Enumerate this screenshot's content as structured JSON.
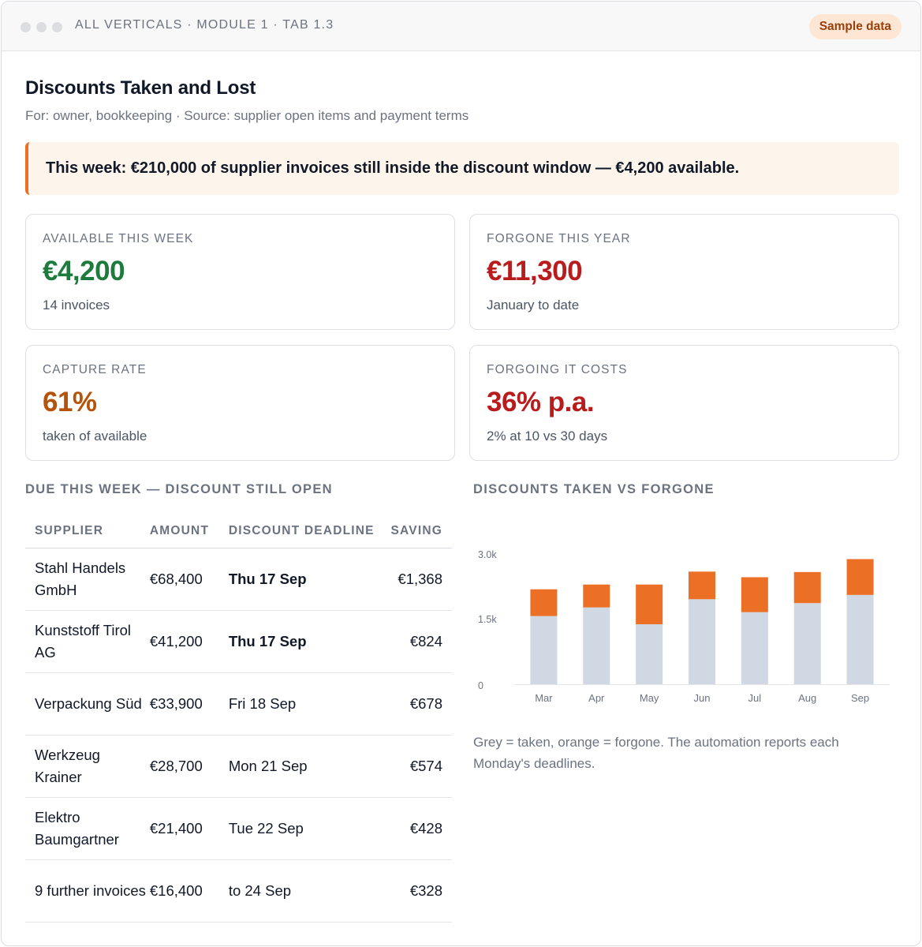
{
  "window": {
    "breadcrumb": "ALL VERTICALS · MODULE 1 · TAB 1.3",
    "badge": "Sample data"
  },
  "page": {
    "title": "Discounts Taken and Lost",
    "subtitle": "For: owner, bookkeeping · Source: supplier open items and payment terms"
  },
  "alert": {
    "text": "This week: €210,000 of supplier invoices still inside the discount window — €4,200 available."
  },
  "kpis": [
    {
      "label": "AVAILABLE THIS WEEK",
      "value": "€4,200",
      "note": "14 invoices",
      "color": "#1f7a3d"
    },
    {
      "label": "FORGONE THIS YEAR",
      "value": "€11,300",
      "note": "January to date",
      "color": "#b91c1c"
    },
    {
      "label": "CAPTURE RATE",
      "value": "61%",
      "note": "taken of available",
      "color": "#b45309"
    },
    {
      "label": "FORGOING IT COSTS",
      "value": "36% p.a.",
      "note": "2% at 10 vs 30 days",
      "color": "#b91c1c"
    }
  ],
  "due_table": {
    "title": "DUE THIS WEEK — DISCOUNT STILL OPEN",
    "columns": [
      "SUPPLIER",
      "AMOUNT",
      "DISCOUNT DEADLINE",
      "SAVING"
    ],
    "rows": [
      {
        "supplier": "Stahl Handels GmbH",
        "amount": "€68,400",
        "deadline": "Thu 17 Sep",
        "saving": "€1,368",
        "urgent": true
      },
      {
        "supplier": "Kunststoff Tirol AG",
        "amount": "€41,200",
        "deadline": "Thu 17 Sep",
        "saving": "€824",
        "urgent": true
      },
      {
        "supplier": "Verpackung Süd",
        "amount": "€33,900",
        "deadline": "Fri 18 Sep",
        "saving": "€678",
        "urgent": false
      },
      {
        "supplier": "Werkzeug Krainer",
        "amount": "€28,700",
        "deadline": "Mon 21 Sep",
        "saving": "€574",
        "urgent": false
      },
      {
        "supplier": "Elektro Baumgartner",
        "amount": "€21,400",
        "deadline": "Tue 22 Sep",
        "saving": "€428",
        "urgent": false
      },
      {
        "supplier": "9 further invoices",
        "amount": "€16,400",
        "deadline": "to 24 Sep",
        "saving": "€328",
        "urgent": false
      }
    ]
  },
  "chart_section": {
    "title": "DISCOUNTS TAKEN VS FORGONE",
    "note": "Grey = taken, orange = forgone. The automation reports each Monday's deadlines."
  },
  "chart_data": {
    "type": "bar",
    "stacked": true,
    "categories": [
      "Mar",
      "Apr",
      "May",
      "Jun",
      "Jul",
      "Aug",
      "Sep"
    ],
    "series": [
      {
        "values": [
          1580,
          1780,
          1390,
          1970,
          1670,
          1880,
          2070
        ],
        "color": "#cfd8e3"
      },
      {
        "values": [
          620,
          530,
          920,
          640,
          810,
          720,
          830
        ],
        "color": "#ec6f26"
      }
    ],
    "ylim": [
      0,
      3000
    ],
    "yticks": [
      0,
      1500,
      3000
    ],
    "ytick_labels": [
      "0",
      "1.5k",
      "3.0k"
    ],
    "grid": false,
    "legend": "none"
  }
}
